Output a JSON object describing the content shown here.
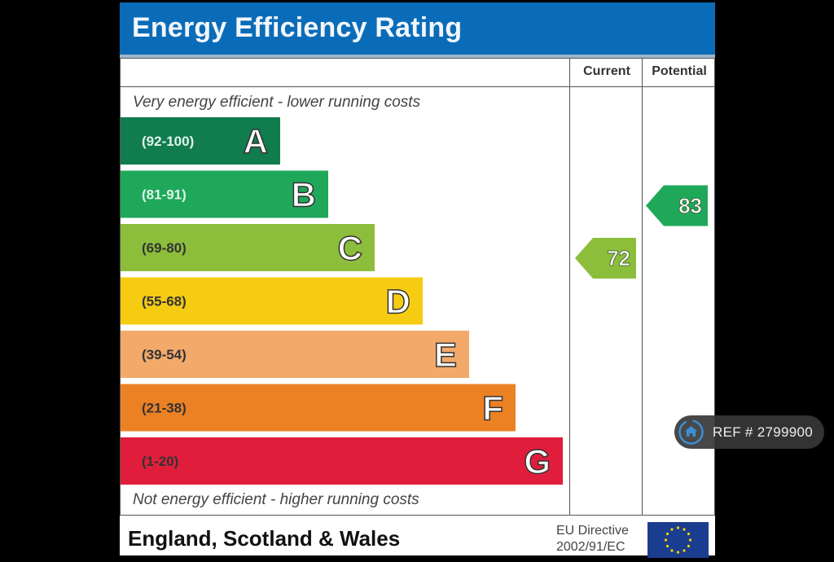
{
  "header": {
    "title": "Energy Efficiency Rating"
  },
  "columns": {
    "current": "Current",
    "potential": "Potential"
  },
  "notes": {
    "top": "Very energy efficient - lower running costs",
    "bottom": "Not energy efficient - higher running costs"
  },
  "footer": {
    "country": "England, Scotland & Wales",
    "directive_line1": "EU Directive",
    "directive_line2": "2002/91/EC",
    "flag_icon": "eu-flag-icon"
  },
  "ref_badge": {
    "icon": "home-icon",
    "text": "REF # 2799900",
    "accent": "#3a8fd6"
  },
  "chart_data": {
    "type": "bar",
    "title": "Energy Efficiency Rating",
    "orientation": "horizontal",
    "categories": [
      "A",
      "B",
      "C",
      "D",
      "E",
      "F",
      "G"
    ],
    "ranges": [
      "(92-100)",
      "(81-91)",
      "(69-80)",
      "(55-68)",
      "(39-54)",
      "(21-38)",
      "(1-20)"
    ],
    "colors": [
      "#117c4e",
      "#1fa85a",
      "#8cbe3c",
      "#f6cc13",
      "#f2a96a",
      "#ec8124",
      "#e01e3c"
    ],
    "range_text_colors": [
      "#dff5ea",
      "#dff5ea",
      "#333333",
      "#333333",
      "#333333",
      "#333333",
      "#333333"
    ],
    "current": {
      "value": 72,
      "band": "C",
      "color": "#8cbe3c"
    },
    "potential": {
      "value": 83,
      "band": "B",
      "color": "#1fa85a"
    }
  }
}
